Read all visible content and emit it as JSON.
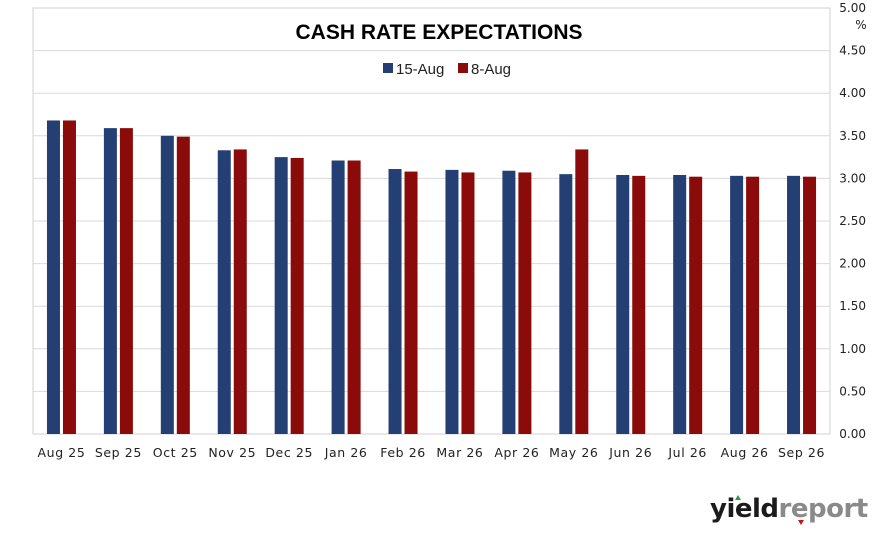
{
  "chart_data": {
    "type": "bar",
    "title": "CASH RATE EXPECTATIONS",
    "ylabel": "%",
    "ylim": [
      0,
      5
    ],
    "yticks": [
      "0.00",
      "0.50",
      "1.00",
      "1.50",
      "2.00",
      "2.50",
      "3.00",
      "3.50",
      "4.00",
      "4.50",
      "5.00"
    ],
    "grid": true,
    "legend_position": "top-center",
    "categories": [
      "Aug 25",
      "Sep 25",
      "Oct 25",
      "Nov 25",
      "Dec 25",
      "Jan 26",
      "Feb 26",
      "Mar 26",
      "Apr 26",
      "May 26",
      "Jun 26",
      "Jul 26",
      "Aug 26",
      "Sep 26"
    ],
    "series": [
      {
        "name": "15-Aug",
        "color": "#243f74",
        "values": [
          3.68,
          3.59,
          3.5,
          3.33,
          3.25,
          3.21,
          3.11,
          3.1,
          3.09,
          3.05,
          3.04,
          3.04,
          3.03,
          3.03
        ]
      },
      {
        "name": "8-Aug",
        "color": "#8b0a0a",
        "values": [
          3.68,
          3.59,
          3.49,
          3.34,
          3.24,
          3.21,
          3.08,
          3.07,
          3.07,
          3.34,
          3.03,
          3.02,
          3.02,
          3.02
        ]
      }
    ]
  },
  "logo": {
    "part1": "yield",
    "part2": "report"
  }
}
